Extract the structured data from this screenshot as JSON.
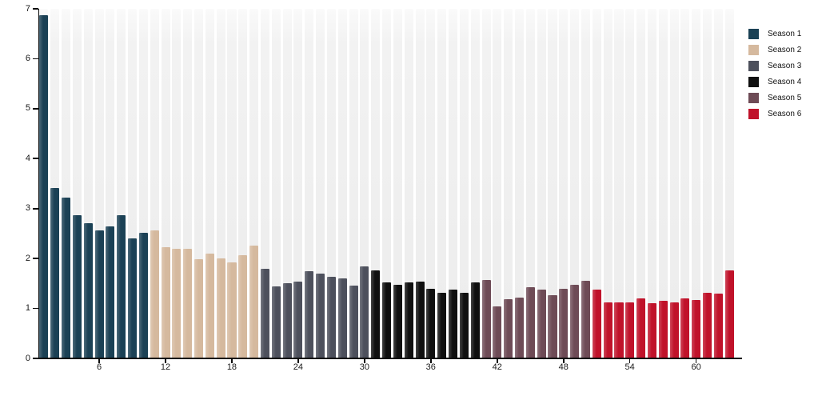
{
  "chart_data": {
    "type": "bar",
    "title": "",
    "xlabel": "",
    "ylabel": "",
    "ylim": [
      0,
      7
    ],
    "y_ticks": [
      "0",
      "1",
      "2",
      "3",
      "4",
      "5",
      "6",
      "7"
    ],
    "x_ticks": [
      "6",
      "12",
      "18",
      "24",
      "30",
      "36",
      "42",
      "48",
      "54",
      "60"
    ],
    "grid": "off",
    "background_stripes": "one light-gray full-height column behind every bar",
    "legend_position": "top-right",
    "total_episodes": 63,
    "series": [
      {
        "name": "Season 1",
        "color": "#1b4155",
        "start_episode": 1,
        "values": [
          6.88,
          3.41,
          3.22,
          2.86,
          2.7,
          2.56,
          2.65,
          2.86,
          2.4,
          2.52
        ]
      },
      {
        "name": "Season 2",
        "color": "#d5b99e",
        "start_episode": 11,
        "values": [
          2.56,
          2.22,
          2.2,
          2.2,
          1.98,
          2.1,
          2.0,
          1.93,
          2.06,
          2.26
        ]
      },
      {
        "name": "Season 3",
        "color": "#4d505c",
        "start_episode": 21,
        "values": [
          1.79,
          1.44,
          1.5,
          1.54,
          1.74,
          1.7,
          1.63,
          1.61,
          1.46,
          1.84
        ]
      },
      {
        "name": "Season 4",
        "color": "#101010",
        "start_episode": 31,
        "values": [
          1.76,
          1.52,
          1.48,
          1.52,
          1.53,
          1.39,
          1.32,
          1.37,
          1.32,
          1.52
        ]
      },
      {
        "name": "Season 5",
        "color": "#6e4b56",
        "start_episode": 41,
        "values": [
          1.57,
          1.04,
          1.18,
          1.21,
          1.43,
          1.38,
          1.27,
          1.39,
          1.47,
          1.55
        ]
      },
      {
        "name": "Season 6",
        "color": "#c0122a",
        "start_episode": 51,
        "values": [
          1.38,
          1.12,
          1.12,
          1.12,
          1.2,
          1.1,
          1.15,
          1.12,
          1.2,
          1.17,
          1.31,
          1.29,
          1.77
        ]
      }
    ],
    "colors": {
      "axis": "#0c0c0c",
      "tick_label": "#1a1a1a",
      "stripe": "#ececec",
      "plot_background": "#ffffff"
    }
  }
}
